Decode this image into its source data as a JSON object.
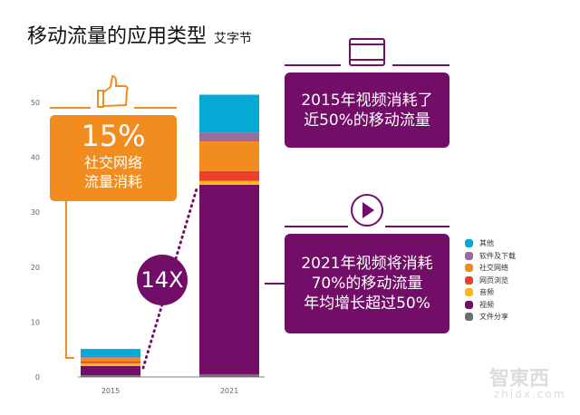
{
  "title": "移动流量的应用类型",
  "subtitle": "艾字节",
  "callouts": {
    "social_pct": "15%",
    "social_line1": "社交网络",
    "social_line2": "流量消耗",
    "growth": "14X",
    "box1_line1": "2015年视频消耗了",
    "box1_line2": "近50%的移动流量",
    "box2_line1": "2021年视频将消耗",
    "box2_line2": "70%的移动流量",
    "box2_line3": "年均增长超过50%",
    "icons": [
      "thumbs-up-icon",
      "film-icon",
      "play-icon"
    ]
  },
  "watermark": {
    "logo": "智東西",
    "url": "zhidx.com"
  },
  "chart_data": {
    "type": "bar",
    "stacked": true,
    "categories": [
      "2015",
      "2021"
    ],
    "ylim": [
      0,
      50
    ],
    "yticks": [
      0,
      10,
      20,
      30,
      40,
      50
    ],
    "grid": false,
    "legend_position": "right",
    "series": [
      {
        "name": "文件分享",
        "color": "#6d6e71",
        "values": [
          0.3,
          0.5
        ]
      },
      {
        "name": "视频",
        "color": "#720e68",
        "values": [
          1.7,
          34.5
        ]
      },
      {
        "name": "音频",
        "color": "#fbb917",
        "values": [
          0.5,
          0.7
        ]
      },
      {
        "name": "网页浏览",
        "color": "#ee3f2c",
        "values": [
          0.3,
          1.8
        ]
      },
      {
        "name": "社交网络",
        "color": "#f28c1e",
        "values": [
          0.7,
          5.4
        ]
      },
      {
        "name": "软件及下载",
        "color": "#9b6a9e",
        "values": [
          0.3,
          1.6
        ]
      },
      {
        "name": "其他",
        "color": "#05a9d5",
        "values": [
          1.3,
          6.9
        ]
      }
    ]
  }
}
